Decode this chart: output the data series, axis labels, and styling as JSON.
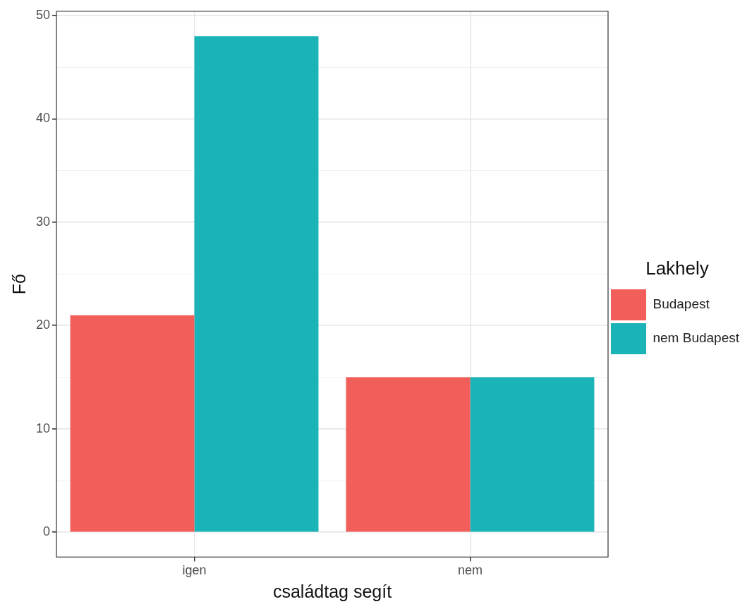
{
  "chart_data": {
    "type": "bar",
    "xlabel": "családtag segít",
    "ylabel": "Fő",
    "legend_title": "Lakhely",
    "categories": [
      "igen",
      "nem"
    ],
    "series": [
      {
        "name": "Budapest",
        "color": "#f25e59",
        "values": [
          21,
          15
        ]
      },
      {
        "name": "nem Budapest",
        "color": "#1ab3b8",
        "values": [
          48,
          15
        ]
      }
    ],
    "ylim": [
      -2.4,
      50.4
    ],
    "yticks": [
      0,
      {
        "value": 5,
        "label": null
      },
      10,
      {
        "value": 15,
        "label": null
      },
      20,
      {
        "value": 25,
        "label": null
      },
      30,
      {
        "value": 35,
        "label": null
      },
      40,
      {
        "value": 45,
        "label": null
      },
      50
    ],
    "grid": true,
    "legend": "right"
  }
}
